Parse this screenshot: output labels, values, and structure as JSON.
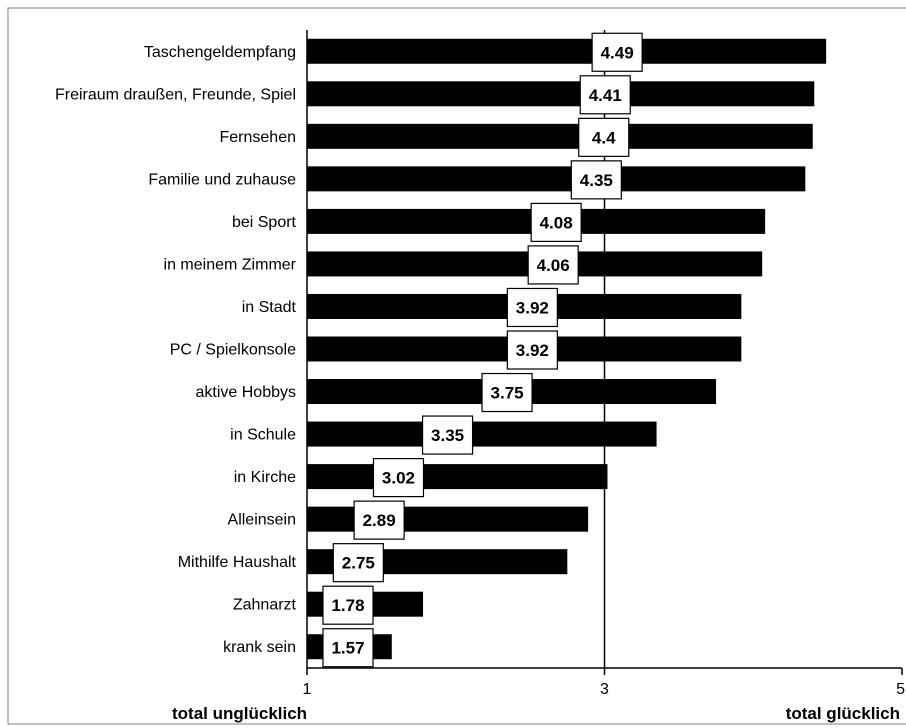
{
  "chart_data": {
    "type": "bar",
    "orientation": "horizontal",
    "categories": [
      "Taschengeldempfang",
      "Freiraum draußen, Freunde, Spiel",
      "Fernsehen",
      "Familie und zuhause",
      "bei Sport",
      "in meinem Zimmer",
      "in Stadt",
      "PC / Spielkonsole",
      "aktive Hobbys",
      "in Schule",
      "in Kirche",
      "Alleinsein",
      "Mithilfe Haushalt",
      "Zahnarzt",
      "krank sein"
    ],
    "values": [
      4.49,
      4.41,
      4.4,
      4.35,
      4.08,
      4.06,
      3.92,
      3.92,
      3.75,
      3.35,
      3.02,
      2.89,
      2.75,
      1.78,
      1.57
    ],
    "value_labels": [
      "4.49",
      "4.41",
      "4.4",
      "4.35",
      "4.08",
      "4.06",
      "3.92",
      "3.92",
      "3.75",
      "3.35",
      "3.02",
      "2.89",
      "2.75",
      "1.78",
      "1.57"
    ],
    "xlim": [
      1,
      5
    ],
    "x_ticks": [
      "1",
      "3",
      "5"
    ],
    "x_tick_values": [
      1,
      3,
      5
    ],
    "reference_line": 3,
    "x_end_labels": {
      "left": "total unglücklich",
      "right": "total glücklich"
    },
    "bar_color": "#000000",
    "label_box_color": "#ffffff",
    "grid": false
  }
}
